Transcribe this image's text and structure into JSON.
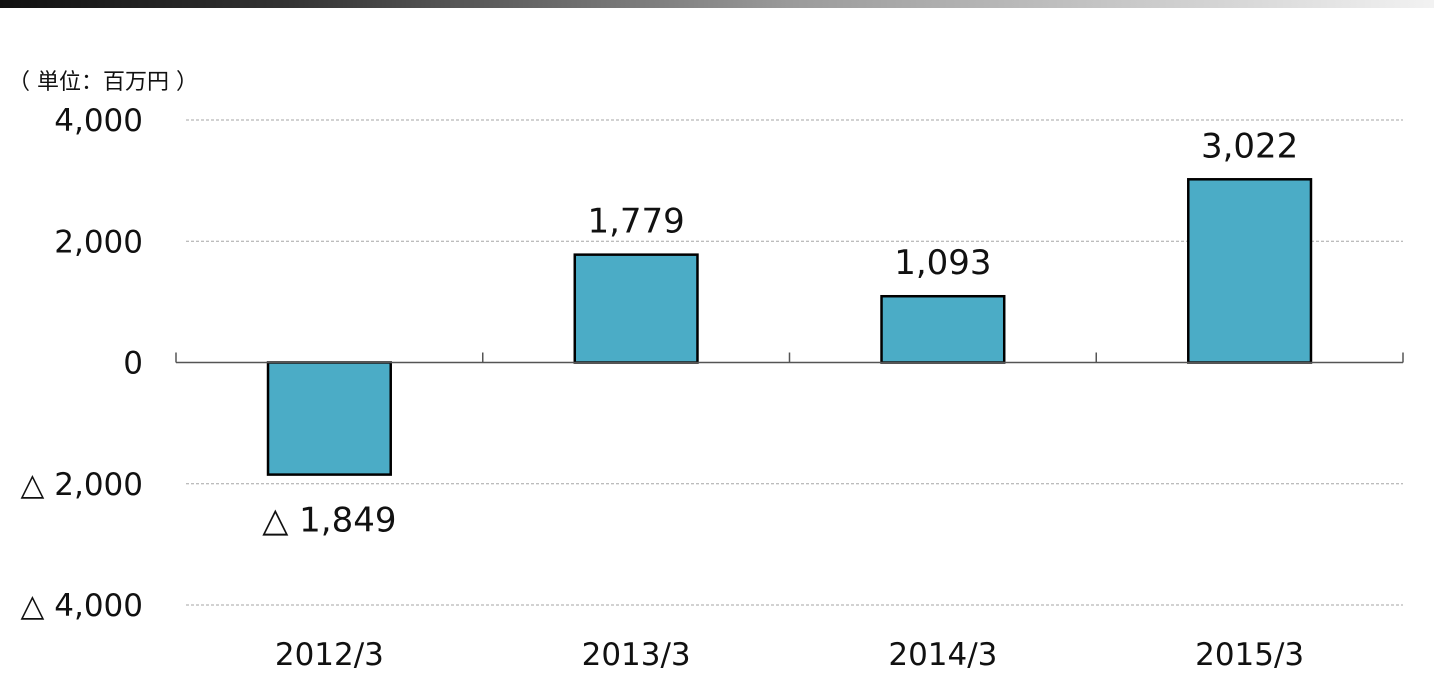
{
  "chart_data": {
    "type": "bar",
    "unit_label": "（ 単位：百万円 ）",
    "categories": [
      "2012/3",
      "2013/3",
      "2014/3",
      "2015/3"
    ],
    "values": [
      -1849,
      1779,
      1093,
      3022
    ],
    "value_labels": [
      "△ 1,849",
      "1,779",
      "1,093",
      "3,022"
    ],
    "ylim": [
      -4000,
      4000
    ],
    "yticks": [
      {
        "value": 4000,
        "label": "4,000"
      },
      {
        "value": 2000,
        "label": "2,000"
      },
      {
        "value": 0,
        "label": "0"
      },
      {
        "value": -2000,
        "label": "△ 2,000"
      },
      {
        "value": -4000,
        "label": "△ 4,000"
      }
    ],
    "grid": true,
    "bar_color": "#4bacc6",
    "title": "",
    "xlabel": "",
    "ylabel": ""
  }
}
